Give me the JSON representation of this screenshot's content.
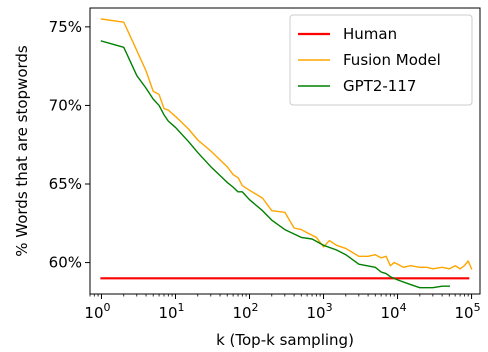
{
  "chart_data": {
    "type": "line",
    "xlabel": "k (Top-k sampling)",
    "ylabel": "% Words that are stopwords",
    "xscale": "log",
    "xlim": [
      0.7,
      130000
    ],
    "ylim": [
      0.58,
      0.762
    ],
    "x_ticks": [
      {
        "value": 1,
        "base": "10",
        "exp": "0"
      },
      {
        "value": 10,
        "base": "10",
        "exp": "1"
      },
      {
        "value": 100,
        "base": "10",
        "exp": "2"
      },
      {
        "value": 1000,
        "base": "10",
        "exp": "3"
      },
      {
        "value": 10000,
        "base": "10",
        "exp": "4"
      },
      {
        "value": 100000,
        "base": "10",
        "exp": "5"
      }
    ],
    "y_ticks": [
      {
        "value": 0.6,
        "label": "60%"
      },
      {
        "value": 0.65,
        "label": "65%"
      },
      {
        "value": 0.7,
        "label": "70%"
      },
      {
        "value": 0.75,
        "label": "75%"
      }
    ],
    "grid": false,
    "legend_position": "top-right",
    "series": [
      {
        "name": "Human",
        "color": "#ff0000",
        "width": 2.2,
        "x": [
          1,
          90000
        ],
        "y": [
          0.59,
          0.59
        ]
      },
      {
        "name": "Fusion Model",
        "color": "#ffa500",
        "width": 1.4,
        "x": [
          1,
          2,
          3,
          4,
          5,
          6,
          7,
          8,
          10,
          15,
          20,
          30,
          50,
          60,
          70,
          80,
          100,
          150,
          200,
          300,
          400,
          500,
          600,
          800,
          1000,
          1200,
          1500,
          2000,
          3000,
          4000,
          5000,
          6000,
          7000,
          8000,
          9000,
          10000,
          12000,
          15000,
          20000,
          25000,
          30000,
          40000,
          50000,
          60000,
          70000,
          80000,
          90000,
          100000
        ],
        "y": [
          0.755,
          0.753,
          0.735,
          0.722,
          0.709,
          0.707,
          0.698,
          0.697,
          0.693,
          0.685,
          0.678,
          0.671,
          0.661,
          0.656,
          0.654,
          0.649,
          0.646,
          0.641,
          0.633,
          0.632,
          0.622,
          0.621,
          0.619,
          0.616,
          0.61,
          0.614,
          0.611,
          0.609,
          0.604,
          0.604,
          0.605,
          0.603,
          0.604,
          0.598,
          0.6,
          0.599,
          0.597,
          0.598,
          0.597,
          0.597,
          0.596,
          0.597,
          0.596,
          0.598,
          0.596,
          0.598,
          0.601,
          0.596
        ]
      },
      {
        "name": "GPT2-117",
        "color": "#008000",
        "width": 1.4,
        "x": [
          1,
          2,
          3,
          4,
          5,
          6,
          7,
          8,
          10,
          15,
          20,
          30,
          50,
          60,
          70,
          80,
          100,
          150,
          200,
          300,
          500,
          700,
          1000,
          1500,
          2000,
          3000,
          5000,
          6000,
          7000,
          8000,
          10000,
          15000,
          20000,
          30000,
          40000,
          50000
        ],
        "y": [
          0.741,
          0.737,
          0.719,
          0.711,
          0.704,
          0.7,
          0.694,
          0.69,
          0.686,
          0.677,
          0.67,
          0.661,
          0.651,
          0.648,
          0.645,
          0.645,
          0.64,
          0.633,
          0.627,
          0.621,
          0.616,
          0.615,
          0.611,
          0.608,
          0.605,
          0.599,
          0.597,
          0.594,
          0.593,
          0.591,
          0.589,
          0.586,
          0.584,
          0.584,
          0.585,
          0.585
        ]
      }
    ]
  }
}
